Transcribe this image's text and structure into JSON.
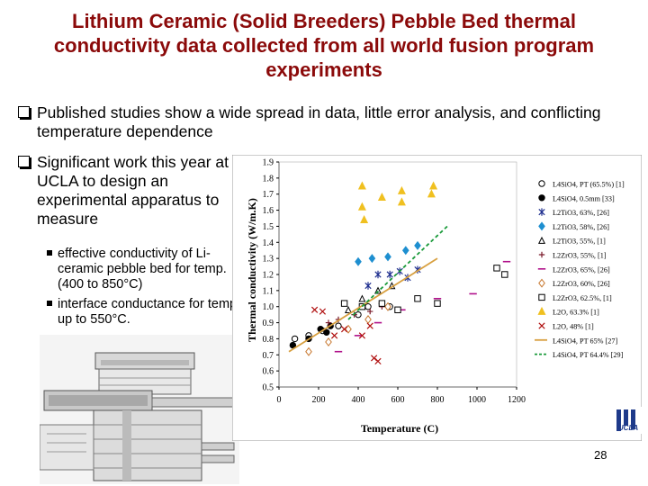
{
  "slide": {
    "title": "Lithium Ceramic (Solid Breeders) Pebble Bed thermal conductivity data collected from all world fusion program experiments",
    "bullet1": "Published studies show a wide spread in data, little error analysis, and conflicting temperature dependence",
    "bullet2": "Significant work this year at UCLA to design an experimental apparatus to measure",
    "sub1": "effective conductivity of Li-ceramic pebble bed for temp. (400 to 850°C)",
    "sub2": "interface conductance for temp. up to 550°C.",
    "page_number": "28",
    "logo_text": "UCLA"
  },
  "chart_data": {
    "type": "scatter",
    "title": "",
    "xlabel": "Temperature (C)",
    "ylabel": "Thermal conductivity (W/m.K)",
    "xlim": [
      0,
      1200
    ],
    "ylim": [
      0.5,
      1.9
    ],
    "xticks": [
      "0",
      "200",
      "400",
      "600",
      "800",
      "1000",
      "1200"
    ],
    "yticks": [
      "0.5",
      "0.6",
      "0.7",
      "0.8",
      "0.9",
      "1.0",
      "1.1",
      "1.2",
      "1.3",
      "1.4",
      "1.5",
      "1.6",
      "1.7",
      "1.8",
      "1.9"
    ],
    "grid": false,
    "legend_position": "right",
    "series": [
      {
        "name": "L4SiO4, PT (65.5%) [1]",
        "marker": "circle-open",
        "color": "#000000",
        "points": [
          [
            80,
            0.8
          ],
          [
            150,
            0.82
          ],
          [
            220,
            0.85
          ],
          [
            300,
            0.88
          ],
          [
            400,
            0.95
          ],
          [
            450,
            1.0
          ],
          [
            520,
            1.02
          ],
          [
            560,
            1.0
          ]
        ]
      },
      {
        "name": "L4SiO4, 0.5mm [33]",
        "marker": "circle-filled",
        "color": "#000000",
        "points": [
          [
            70,
            0.76
          ],
          [
            150,
            0.8
          ],
          [
            210,
            0.86
          ],
          [
            240,
            0.84
          ],
          [
            260,
            0.88
          ]
        ]
      },
      {
        "name": "L2TiO3, 63%, [26]",
        "marker": "star",
        "color": "#1f2f8f",
        "points": [
          [
            450,
            1.13
          ],
          [
            500,
            1.2
          ],
          [
            560,
            1.2
          ],
          [
            610,
            1.22
          ],
          [
            650,
            1.18
          ],
          [
            700,
            1.23
          ]
        ]
      },
      {
        "name": "L2TiO3, 58%, [26]",
        "marker": "diamond-filled",
        "color": "#1e8fd0",
        "points": [
          [
            400,
            1.28
          ],
          [
            470,
            1.3
          ],
          [
            550,
            1.31
          ],
          [
            640,
            1.35
          ],
          [
            700,
            1.38
          ]
        ]
      },
      {
        "name": "L2TiO3, 55%, [1]",
        "marker": "triangle-open",
        "color": "#000000",
        "points": [
          [
            350,
            0.98
          ],
          [
            420,
            1.05
          ],
          [
            500,
            1.1
          ],
          [
            570,
            1.13
          ]
        ]
      },
      {
        "name": "L2ZrO3, 55%, [1]",
        "marker": "plus",
        "color": "#7a1a2a",
        "points": [
          [
            250,
            0.9
          ],
          [
            300,
            0.92
          ],
          [
            380,
            0.95
          ],
          [
            460,
            0.97
          ],
          [
            520,
            1.0
          ]
        ]
      },
      {
        "name": "L2ZrO3, 65%, [26]",
        "marker": "dash",
        "color": "#b0108a",
        "points": [
          [
            300,
            0.72
          ],
          [
            400,
            0.82
          ],
          [
            500,
            0.9
          ],
          [
            620,
            0.98
          ],
          [
            800,
            1.05
          ],
          [
            980,
            1.08
          ],
          [
            1150,
            1.28
          ]
        ]
      },
      {
        "name": "L2ZrO3, 60%, [26]",
        "marker": "diamond-open",
        "color": "#c87830",
        "points": [
          [
            150,
            0.72
          ],
          [
            250,
            0.78
          ],
          [
            350,
            0.86
          ],
          [
            450,
            0.92
          ],
          [
            550,
            1.0
          ]
        ]
      },
      {
        "name": "L2ZrO3, 62.5%, [1]",
        "marker": "square-open",
        "color": "#000000",
        "points": [
          [
            330,
            1.02
          ],
          [
            420,
            1.0
          ],
          [
            520,
            1.02
          ],
          [
            600,
            0.98
          ],
          [
            700,
            1.05
          ],
          [
            800,
            1.02
          ],
          [
            1100,
            1.24
          ],
          [
            1140,
            1.2
          ]
        ]
      },
      {
        "name": "L2O, 63.3% [1]",
        "marker": "triangle-filled",
        "color": "#f0c020",
        "points": [
          [
            420,
            1.75
          ],
          [
            420,
            1.62
          ],
          [
            430,
            1.54
          ],
          [
            520,
            1.68
          ],
          [
            620,
            1.72
          ],
          [
            620,
            1.65
          ],
          [
            770,
            1.7
          ],
          [
            780,
            1.75
          ]
        ]
      },
      {
        "name": "L2O, 48% [1]",
        "marker": "x",
        "color": "#b01010",
        "points": [
          [
            180,
            0.98
          ],
          [
            220,
            0.97
          ],
          [
            280,
            0.82
          ],
          [
            330,
            0.86
          ],
          [
            420,
            0.82
          ],
          [
            460,
            0.88
          ],
          [
            480,
            0.68
          ],
          [
            500,
            0.66
          ]
        ]
      },
      {
        "name": "L4SiO4, PT 65% [27]",
        "marker": "line-solid",
        "color": "#d8a040",
        "points": [
          [
            50,
            0.72
          ],
          [
            800,
            1.3
          ]
        ]
      },
      {
        "name": "L4SiO4, PT 64.4% [29]",
        "marker": "line-dashed",
        "color": "#1a9a3a",
        "points": [
          [
            350,
            0.92
          ],
          [
            850,
            1.5
          ]
        ]
      }
    ]
  }
}
